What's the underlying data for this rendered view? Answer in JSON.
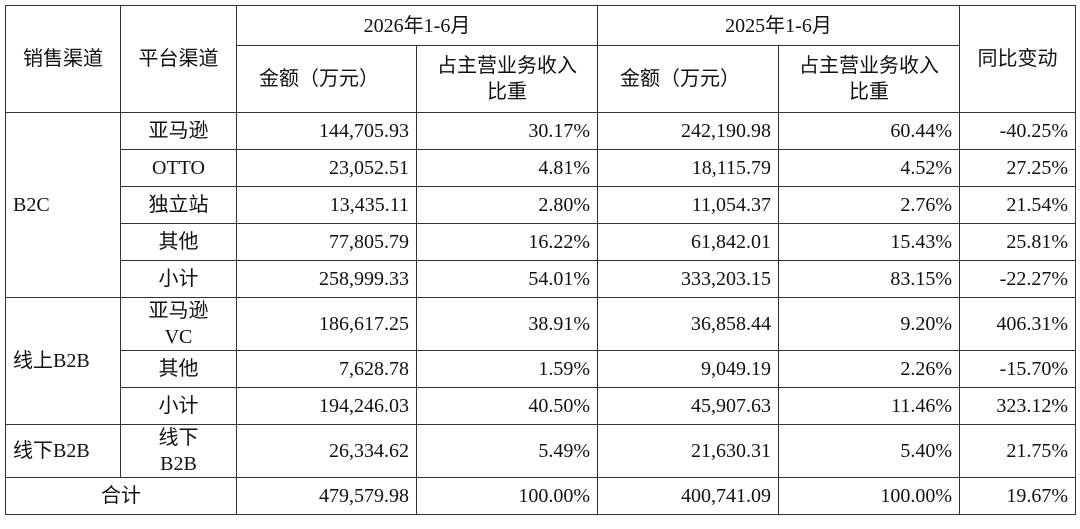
{
  "header": {
    "sales_channel": "销售渠道",
    "platform": "平台渠道",
    "periods": [
      {
        "label": "2026年1-6月",
        "amount": "金额（万元）",
        "share": "占主营业务收入比重"
      },
      {
        "label": "2025年1-6月",
        "amount": "金额（万元）",
        "share": "占主营业务收入比重"
      }
    ],
    "yoy": "同比变动"
  },
  "groups": [
    {
      "channel": "B2C",
      "rows": [
        [
          "亚马逊",
          "144,705.93",
          "30.17%",
          "242,190.98",
          "60.44%",
          "-40.25%"
        ],
        [
          "OTTO",
          "23,052.51",
          "4.81%",
          "18,115.79",
          "4.52%",
          "27.25%"
        ],
        [
          "独立站",
          "13,435.11",
          "2.80%",
          "11,054.37",
          "2.76%",
          "21.54%"
        ],
        [
          "其他",
          "77,805.79",
          "16.22%",
          "61,842.01",
          "15.43%",
          "25.81%"
        ],
        [
          "小计",
          "258,999.33",
          "54.01%",
          "333,203.15",
          "83.15%",
          "-22.27%"
        ]
      ]
    },
    {
      "channel": "线上B2B",
      "rows": [
        [
          "亚马逊VC",
          "186,617.25",
          "38.91%",
          "36,858.44",
          "9.20%",
          "406.31%"
        ],
        [
          "其他",
          "7,628.78",
          "1.59%",
          "9,049.19",
          "2.26%",
          "-15.70%"
        ],
        [
          "小计",
          "194,246.03",
          "40.50%",
          "45,907.63",
          "11.46%",
          "323.12%"
        ]
      ]
    },
    {
      "channel": "线下B2B",
      "rows": [
        [
          "线下B2B",
          "26,334.62",
          "5.49%",
          "21,630.31",
          "5.40%",
          "21.75%"
        ]
      ]
    }
  ],
  "total": [
    "合计",
    "479,579.98",
    "100.00%",
    "400,741.09",
    "100.00%",
    "19.67%"
  ]
}
